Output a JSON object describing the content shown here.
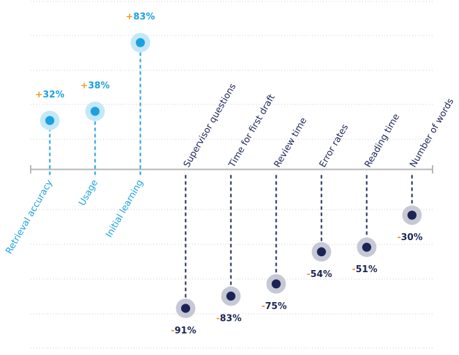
{
  "chart_data": {
    "type": "lollipop",
    "categories": [
      "Retrieval accuracy",
      "Usage",
      "Initial learning",
      "Supervisor questions",
      "Time for first draft",
      "Review time",
      "Error rates",
      "Reading time",
      "Number of words"
    ],
    "values": [
      32,
      38,
      83,
      -91,
      -83,
      -75,
      -54,
      -51,
      -30
    ],
    "value_labels": [
      "+32%",
      "+38%",
      "+83%",
      "-91%",
      "-83%",
      "-75%",
      "-54%",
      "-51%",
      "-30%"
    ],
    "positive_color": "#1ba1e2",
    "negative_color": "#1b2455",
    "sign_color": "#f39a2a",
    "ylim": [
      -117,
      110
    ]
  }
}
